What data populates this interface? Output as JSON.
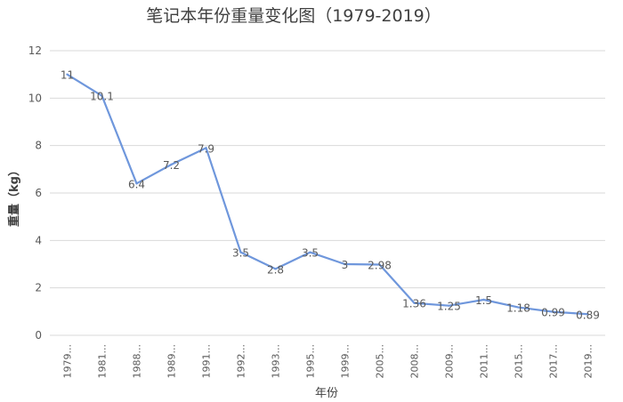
{
  "chart_data": {
    "type": "line",
    "title": "笔记本年份重量变化图（1979-2019）",
    "xlabel": "年份",
    "ylabel": "重量（kg）",
    "ylim": [
      0,
      12
    ],
    "yticks": [
      "0",
      "2",
      "4",
      "6",
      "8",
      "10",
      "12"
    ],
    "grid": true,
    "categories": [
      "1979...",
      "1981...",
      "1988...",
      "1989...",
      "1991...",
      "1992...",
      "1993...",
      "1995...",
      "1999...",
      "2005...",
      "2008...",
      "2009...",
      "2011...",
      "2015...",
      "2017...",
      "2019..."
    ],
    "series": [
      {
        "values": [
          11,
          10.1,
          6.4,
          7.2,
          7.9,
          3.5,
          2.8,
          3.5,
          3,
          2.98,
          1.36,
          1.25,
          1.5,
          1.18,
          0.99,
          0.89
        ],
        "labels": [
          "11",
          "10.1",
          "6.4",
          "7.2",
          "7.9",
          "3.5",
          "2.8",
          "3.5",
          "3",
          "2.98",
          "1.36",
          "1.25",
          "1.5",
          "1.18",
          "0.99",
          "0.89"
        ],
        "color": "#6f97dc"
      }
    ]
  }
}
